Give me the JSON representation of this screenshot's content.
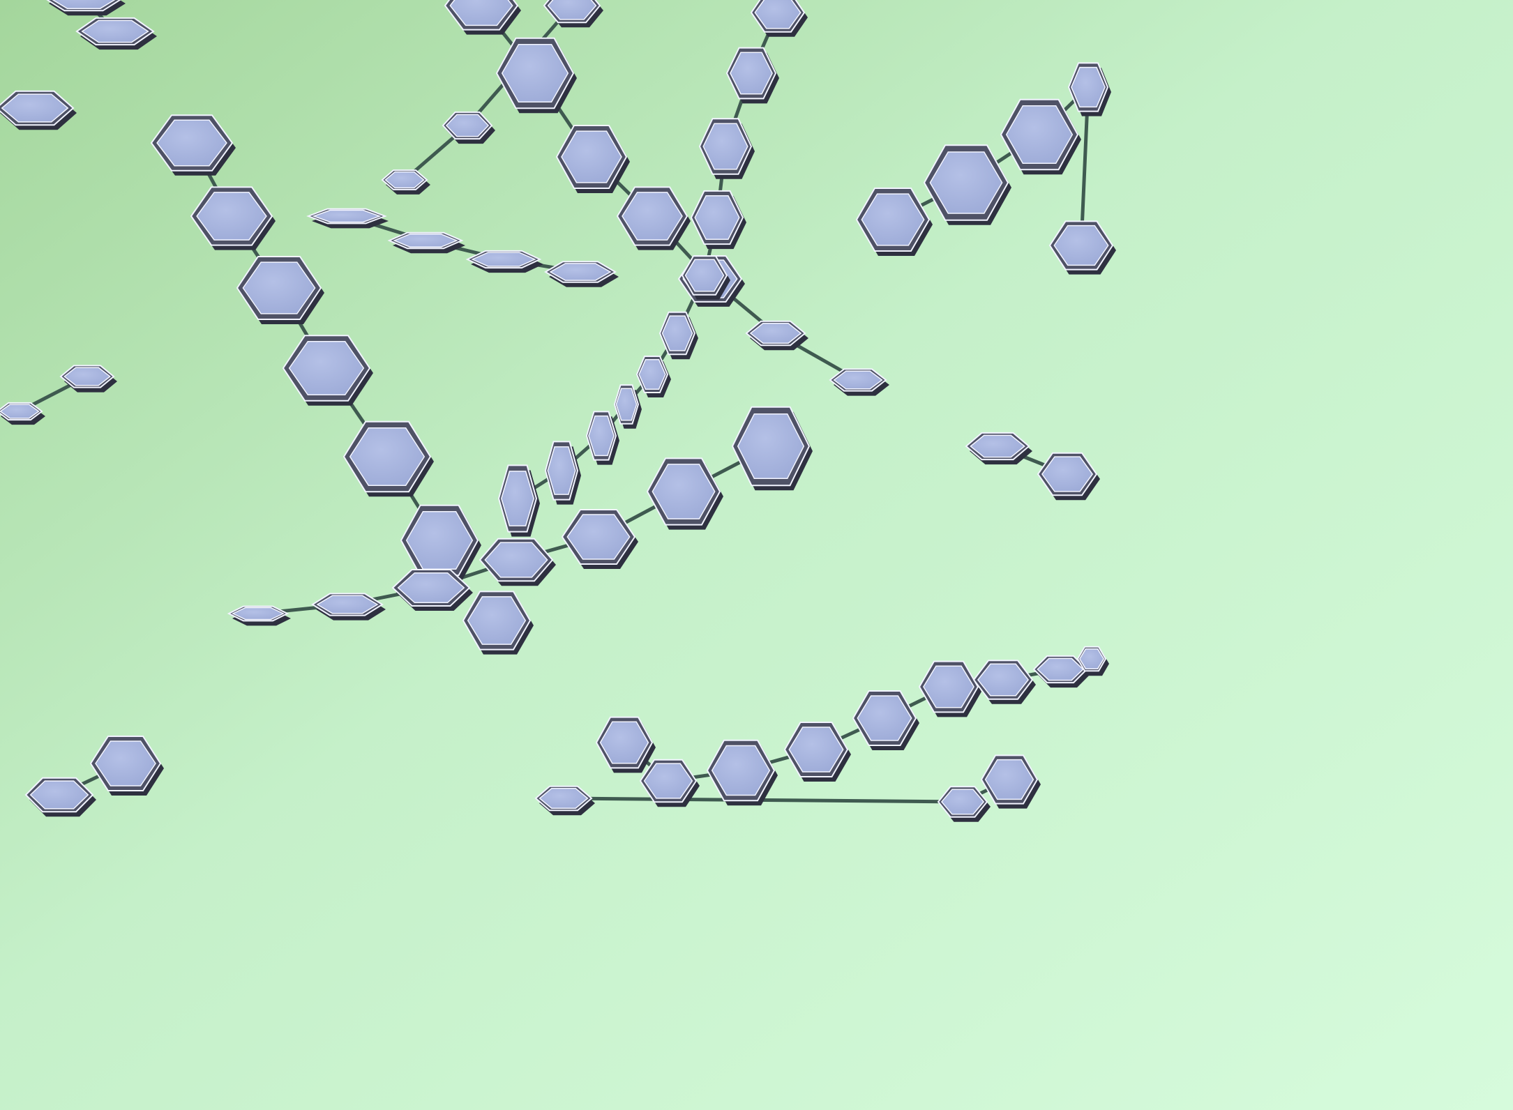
{
  "scene": {
    "subject": "hexagon-chains",
    "colors": {
      "bg_top_left": "#a4d69c",
      "bg_mid": "#c5f0c9",
      "bg_bottom_right": "#d6fbdc",
      "hex_face": "#9ba9d6",
      "hex_face_light": "#b4c0e6",
      "hex_edge_dark": "#4f5266",
      "hex_edge_shadow": "#2e3040",
      "hex_highlight": "#f2f4ff",
      "link": "#3f5a50"
    }
  }
}
